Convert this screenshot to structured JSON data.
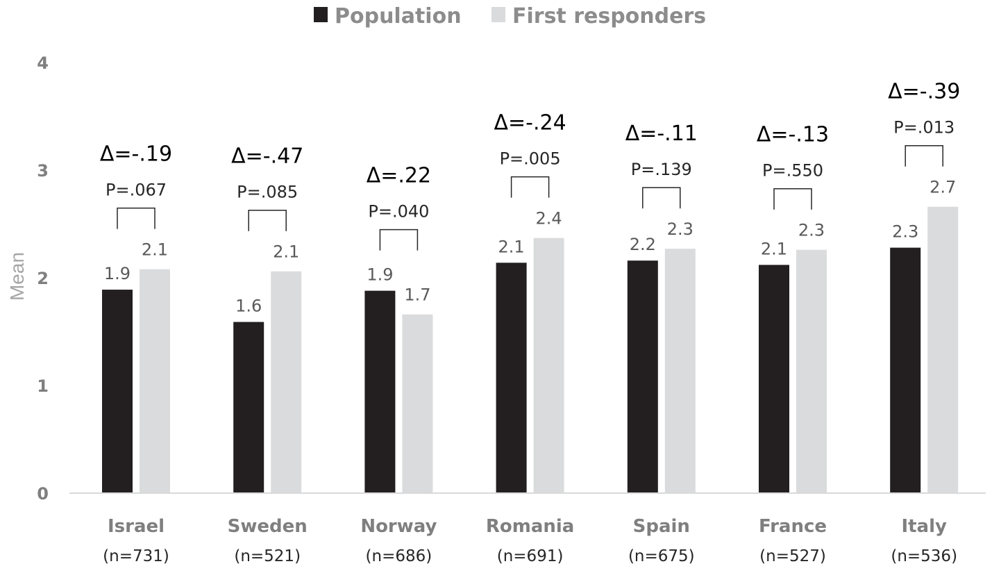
{
  "chart_data": {
    "type": "bar",
    "ylabel": "Mean",
    "ylim": [
      0,
      4
    ],
    "yticks": [
      "0",
      "1",
      "2",
      "3",
      "4"
    ],
    "legend_position": "top-center",
    "categories": [
      {
        "name": "Israel",
        "n": "(n=731)",
        "delta": "Δ=-.19",
        "p": "P=.067"
      },
      {
        "name": "Sweden",
        "n": "(n=521)",
        "delta": "Δ=-.47",
        "p": "P=.085"
      },
      {
        "name": "Norway",
        "n": "(n=686)",
        "delta": "Δ=.22",
        "p": "P=.040"
      },
      {
        "name": "Romania",
        "n": "(n=691)",
        "delta": "Δ=-.24",
        "p": "P=.005"
      },
      {
        "name": "Spain",
        "n": "(n=675)",
        "delta": "Δ=-.11",
        "p": "P=.139"
      },
      {
        "name": "France",
        "n": "(n=527)",
        "delta": "Δ=-.13",
        "p": "P=.550"
      },
      {
        "name": "Italy",
        "n": "(n=536)",
        "delta": "Δ=-.39",
        "p": "P=.013"
      }
    ],
    "series": [
      {
        "name": "Population",
        "color": "#231f20",
        "values": [
          1.89,
          1.59,
          1.88,
          2.14,
          2.16,
          2.12,
          2.28
        ],
        "labels": [
          "1.9",
          "1.6",
          "1.9",
          "2.1",
          "2.2",
          "2.1",
          "2.3"
        ]
      },
      {
        "name": "First responders",
        "color": "#dadbdc",
        "values": [
          2.08,
          2.06,
          1.66,
          2.37,
          2.27,
          2.26,
          2.66
        ],
        "labels": [
          "2.1",
          "2.1",
          "1.7",
          "2.4",
          "2.3",
          "2.3",
          "2.7"
        ]
      }
    ]
  }
}
